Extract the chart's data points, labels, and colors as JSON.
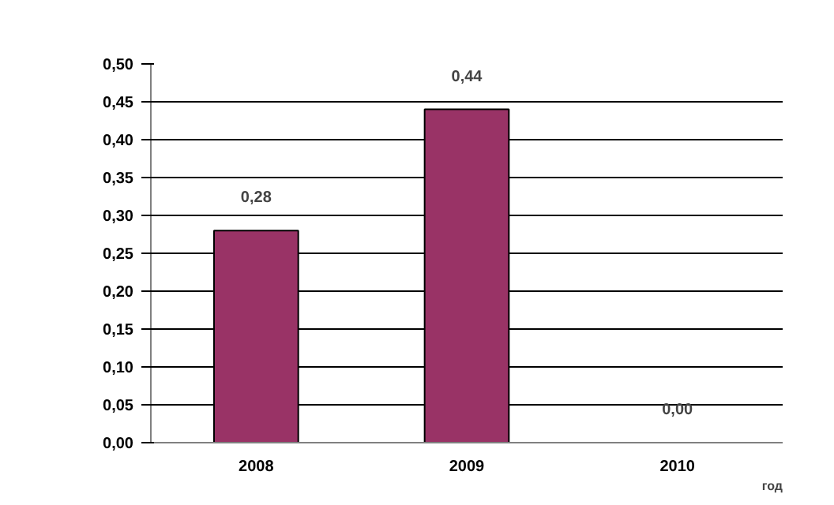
{
  "chart_data": {
    "type": "bar",
    "categories": [
      "2008",
      "2009",
      "2010"
    ],
    "values": [
      0.28,
      0.44,
      0.0
    ],
    "value_labels": [
      "0,28",
      "0,44",
      "0,00"
    ],
    "color": "#993366",
    "xlabel": "год",
    "ylim": [
      0,
      0.5
    ],
    "yticks": [
      {
        "value": 0,
        "label": "0,00"
      },
      {
        "value": 0.05,
        "label": "0,05"
      },
      {
        "value": 0.1,
        "label": "0,10"
      },
      {
        "value": 0.15,
        "label": "0,15"
      },
      {
        "value": 0.2,
        "label": "0,20"
      },
      {
        "value": 0.25,
        "label": "0,25"
      },
      {
        "value": 0.3,
        "label": "0,30"
      },
      {
        "value": 0.35,
        "label": "0,35"
      },
      {
        "value": 0.4,
        "label": "0,40"
      },
      {
        "value": 0.45,
        "label": "0,45"
      },
      {
        "value": 0.5,
        "label": "0,50"
      }
    ],
    "grid": "y"
  }
}
